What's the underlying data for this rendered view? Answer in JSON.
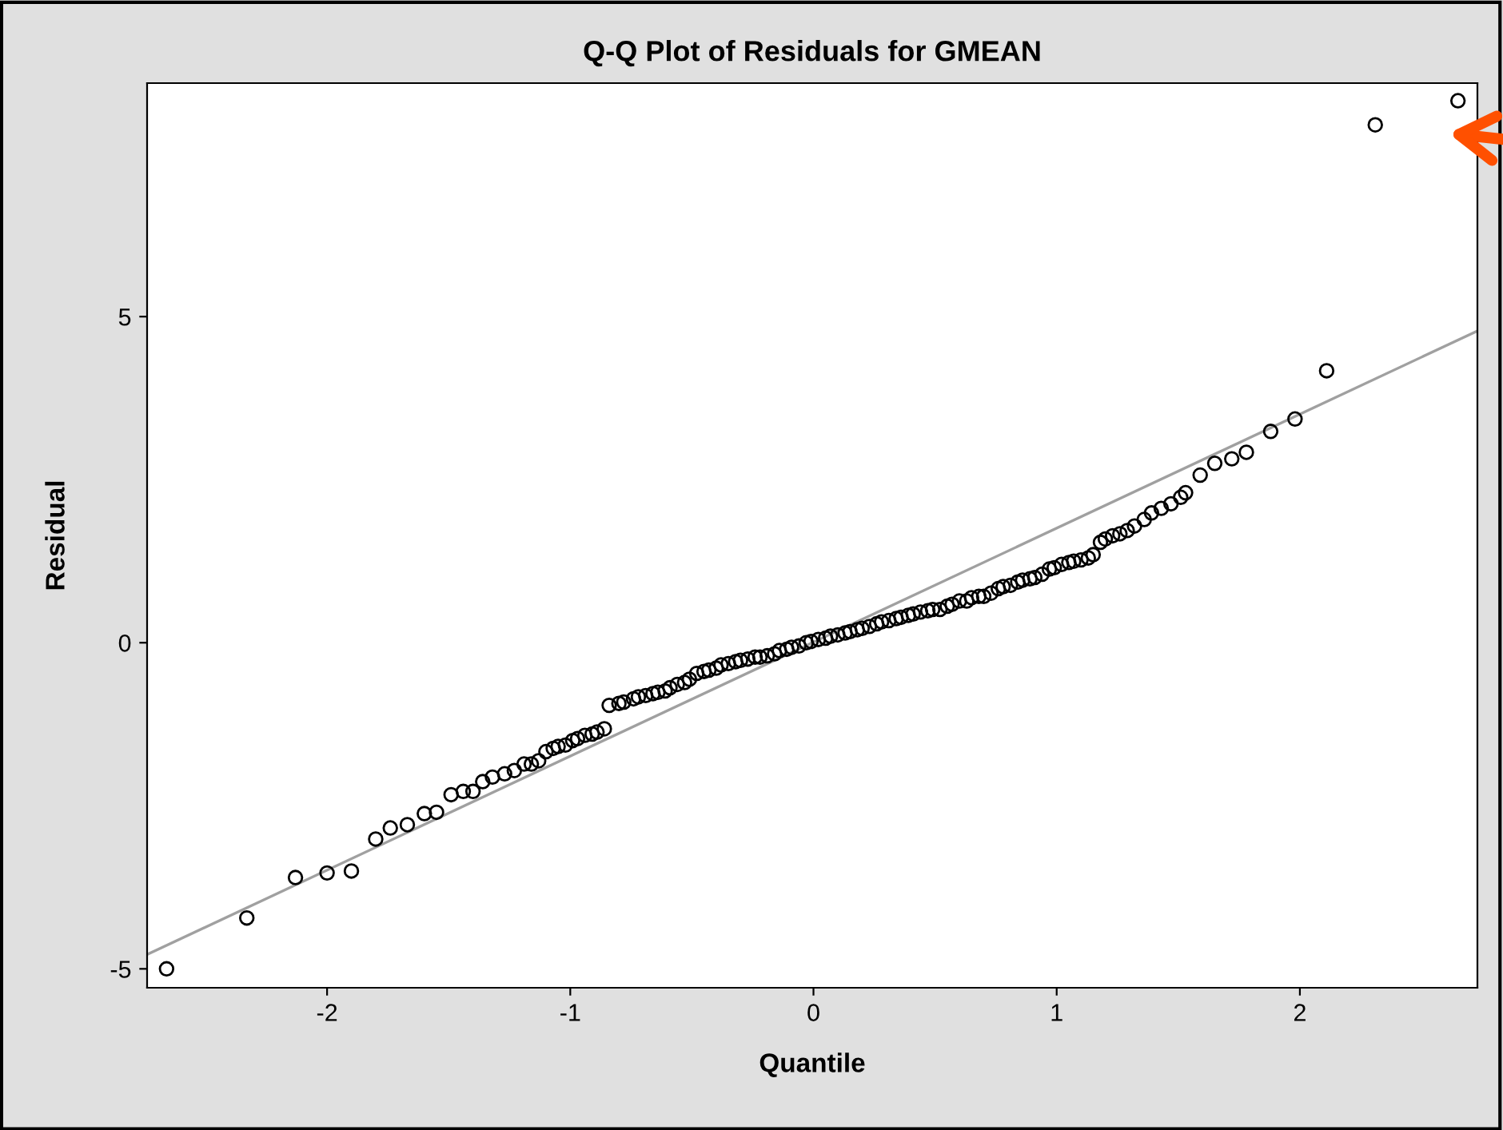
{
  "chart_data": {
    "type": "scatter",
    "title": "Q-Q Plot of Residuals for GMEAN",
    "xlabel": "Quantile",
    "ylabel": "Residual",
    "xlim": [
      -2.74,
      2.73
    ],
    "ylim": [
      -5.29,
      8.58
    ],
    "xticks": [
      -2,
      -1,
      0,
      1,
      2
    ],
    "yticks": [
      -5,
      0,
      5
    ],
    "grid": false,
    "series": [
      {
        "color": "#000000",
        "marker": "circle",
        "x": [
          -2.66,
          -2.33,
          -2.13,
          -2.0,
          -1.9,
          -1.8,
          -1.74,
          -1.67,
          -1.6,
          -1.55,
          -1.49,
          -1.44,
          -1.4,
          -1.36,
          -1.32,
          -1.27,
          -1.23,
          -1.19,
          -1.16,
          -1.13,
          -1.1,
          -1.07,
          -1.05,
          -1.02,
          -0.99,
          -0.97,
          -0.94,
          -0.91,
          -0.89,
          -0.86,
          -0.84,
          -0.8,
          -0.78,
          -0.74,
          -0.72,
          -0.69,
          -0.66,
          -0.64,
          -0.61,
          -0.59,
          -0.56,
          -0.53,
          -0.51,
          -0.48,
          -0.45,
          -0.43,
          -0.4,
          -0.38,
          -0.35,
          -0.32,
          -0.3,
          -0.27,
          -0.24,
          -0.22,
          -0.19,
          -0.16,
          -0.14,
          -0.11,
          -0.09,
          -0.06,
          -0.03,
          -0.01,
          0.02,
          0.05,
          0.07,
          0.1,
          0.13,
          0.15,
          0.18,
          0.2,
          0.23,
          0.26,
          0.28,
          0.31,
          0.34,
          0.36,
          0.39,
          0.41,
          0.44,
          0.47,
          0.49,
          0.52,
          0.55,
          0.57,
          0.6,
          0.63,
          0.65,
          0.68,
          0.7,
          0.73,
          0.76,
          0.78,
          0.81,
          0.84,
          0.86,
          0.89,
          0.91,
          0.94,
          0.97,
          0.99,
          1.02,
          1.05,
          1.07,
          1.1,
          1.13,
          1.15,
          1.18,
          1.2,
          1.23,
          1.26,
          1.29,
          1.32,
          1.36,
          1.39,
          1.43,
          1.47,
          1.51,
          1.53,
          1.59,
          1.65,
          1.72,
          1.78,
          1.88,
          1.98,
          2.11,
          2.31,
          2.65
        ],
        "values": [
          -5.0,
          -4.22,
          -3.6,
          -3.53,
          -3.5,
          -3.01,
          -2.84,
          -2.79,
          -2.62,
          -2.6,
          -2.33,
          -2.28,
          -2.28,
          -2.13,
          -2.06,
          -2.01,
          -1.96,
          -1.86,
          -1.86,
          -1.81,
          -1.67,
          -1.62,
          -1.59,
          -1.57,
          -1.5,
          -1.47,
          -1.42,
          -1.4,
          -1.37,
          -1.32,
          -0.96,
          -0.93,
          -0.91,
          -0.86,
          -0.83,
          -0.81,
          -0.78,
          -0.76,
          -0.74,
          -0.69,
          -0.64,
          -0.61,
          -0.56,
          -0.47,
          -0.44,
          -0.42,
          -0.39,
          -0.34,
          -0.32,
          -0.29,
          -0.27,
          -0.25,
          -0.22,
          -0.22,
          -0.2,
          -0.17,
          -0.12,
          -0.1,
          -0.07,
          -0.05,
          0.0,
          0.02,
          0.05,
          0.07,
          0.1,
          0.12,
          0.15,
          0.17,
          0.2,
          0.22,
          0.25,
          0.29,
          0.32,
          0.34,
          0.37,
          0.39,
          0.42,
          0.44,
          0.47,
          0.49,
          0.51,
          0.51,
          0.56,
          0.59,
          0.64,
          0.64,
          0.69,
          0.71,
          0.71,
          0.76,
          0.83,
          0.86,
          0.88,
          0.93,
          0.96,
          0.98,
          1.0,
          1.05,
          1.13,
          1.15,
          1.2,
          1.23,
          1.25,
          1.27,
          1.3,
          1.35,
          1.54,
          1.59,
          1.64,
          1.67,
          1.72,
          1.79,
          1.89,
          1.99,
          2.06,
          2.13,
          2.23,
          2.3,
          2.57,
          2.75,
          2.82,
          2.92,
          3.24,
          3.43,
          4.17,
          7.94,
          8.31
        ]
      },
      {
        "type": "line",
        "marker": "none",
        "color": "#a0a0a0",
        "x": [
          -2.74,
          2.73
        ],
        "values": [
          -4.78,
          4.78
        ]
      }
    ]
  }
}
